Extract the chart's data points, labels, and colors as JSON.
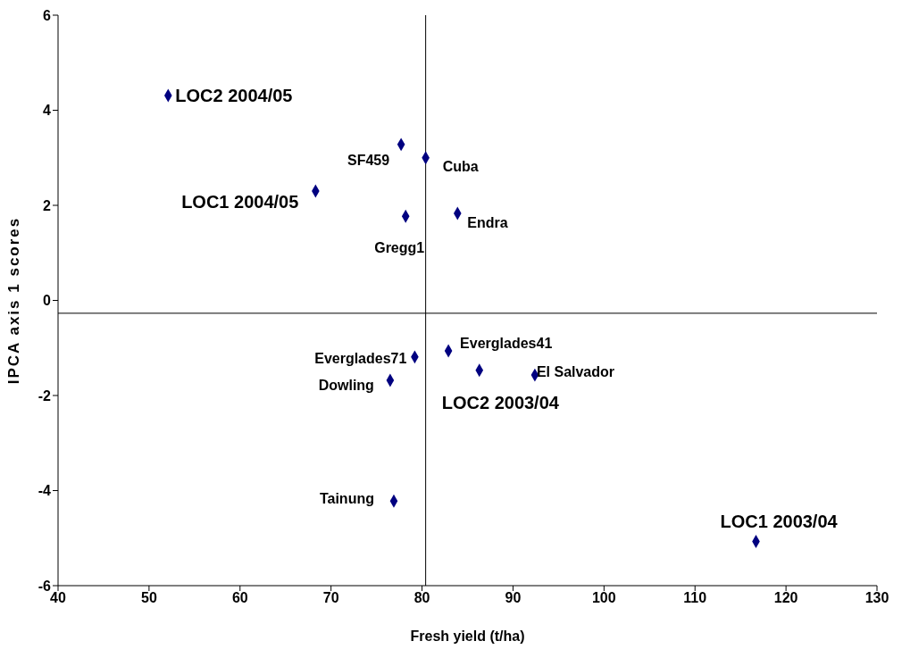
{
  "chart_data": {
    "type": "scatter",
    "xlabel": "Fresh yield (t/ha)",
    "ylabel": "IPCA axis 1 scores",
    "xlim": [
      40,
      130
    ],
    "xticks": [
      40,
      50,
      60,
      70,
      80,
      90,
      100,
      110,
      120,
      130
    ],
    "ylim": [
      -6,
      6
    ],
    "yticks": [
      -6,
      -4,
      -2,
      0,
      2,
      4,
      6
    ],
    "grid": false,
    "legend": false,
    "marker": "diamond",
    "ref_lines": [
      {
        "axis": "x",
        "value": 80.4,
        "color": "#000000"
      },
      {
        "axis": "y",
        "value": -0.27,
        "color": "#000000"
      }
    ],
    "series": [
      {
        "color": "#000080",
        "x": [
          77.7,
          80.4,
          78.2,
          83.9,
          82.9,
          79.2,
          92.4,
          76.5,
          76.9
        ],
        "values": [
          3.28,
          3.0,
          1.77,
          1.83,
          -1.06,
          -1.19,
          -1.57,
          -1.68,
          -4.22
        ],
        "value_labels": [
          "SF459",
          "Cuba",
          "Gregg1",
          "Endra",
          "Everglades41",
          "Everglades71",
          "El Salvador",
          "Dowling",
          "Tainung"
        ]
      },
      {
        "color": "#000080",
        "x": [
          52.1,
          68.3,
          86.3,
          116.7
        ],
        "values": [
          4.31,
          2.3,
          -1.47,
          -5.07
        ],
        "value_labels": [
          "LOC2 2004/05",
          "LOC1 2004/05",
          "LOC2 2003/04",
          "LOC1 2003/04"
        ]
      }
    ]
  }
}
